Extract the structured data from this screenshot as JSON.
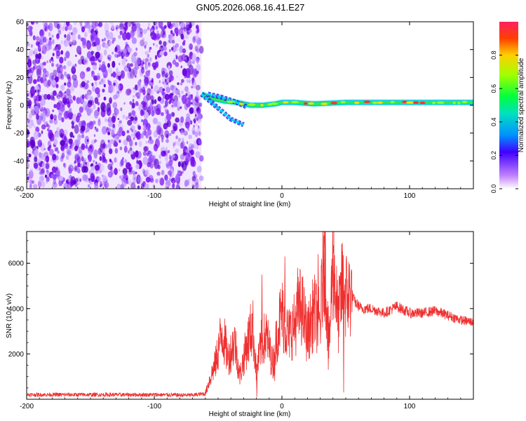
{
  "title": "GN05.2026.068.16.41.E27",
  "chart_data": [
    {
      "type": "heatmap",
      "id": "spectrogram",
      "xlabel": "Height of straight line (km)",
      "ylabel": "Frequency (Hz)",
      "xlim": [
        -200,
        150
      ],
      "ylim": [
        -60,
        60
      ],
      "xticks": [
        -200,
        -100,
        0,
        100
      ],
      "yticks": [
        -60,
        -40,
        -20,
        0,
        20,
        40,
        60
      ],
      "noise_region_x": [
        -200,
        -63
      ],
      "ridge": [
        {
          "x": -63,
          "y": 8
        },
        {
          "x": -55,
          "y": 5
        },
        {
          "x": -45,
          "y": 3
        },
        {
          "x": -35,
          "y": 2
        },
        {
          "x": -25,
          "y": 0
        },
        {
          "x": -15,
          "y": 0
        },
        {
          "x": -5,
          "y": 1
        },
        {
          "x": 0,
          "y": 2
        },
        {
          "x": 10,
          "y": 2
        },
        {
          "x": 25,
          "y": 1
        },
        {
          "x": 50,
          "y": 2
        },
        {
          "x": 100,
          "y": 2
        },
        {
          "x": 150,
          "y": 2
        }
      ],
      "branches": [
        [
          {
            "x": -63,
            "y": 8
          },
          {
            "x": -50,
            "y": -2
          },
          {
            "x": -40,
            "y": -10
          },
          {
            "x": -30,
            "y": -14
          }
        ],
        [
          {
            "x": -58,
            "y": 8
          },
          {
            "x": -48,
            "y": 6
          },
          {
            "x": -38,
            "y": 3
          },
          {
            "x": -28,
            "y": -1
          }
        ]
      ],
      "colorbar": {
        "label": "Normalized spectral amplitude",
        "range": [
          0,
          1
        ],
        "ticks": [
          "0.0",
          "0.2",
          "0.4",
          "0.6",
          "0.8"
        ],
        "tick_values": [
          0.0,
          0.2,
          0.4,
          0.6,
          0.8
        ]
      }
    },
    {
      "type": "line",
      "id": "snr",
      "xlabel": "Height of straight line (km)",
      "ylabel": "SNR (10 * v/v)",
      "xlim": [
        -200,
        150
      ],
      "ylim": [
        0,
        7400
      ],
      "xticks": [
        -200,
        -100,
        0,
        100
      ],
      "yticks": [
        2000,
        4000,
        6000
      ],
      "series": [
        {
          "name": "SNR",
          "color": "#f03030",
          "x": [
            -200,
            -150,
            -100,
            -70,
            -60,
            -57,
            -52,
            -47,
            -42,
            -37,
            -33,
            -28,
            -23,
            -20,
            -16,
            -12,
            -7,
            -3,
            0,
            5,
            10,
            15,
            20,
            25,
            30,
            33,
            37,
            40,
            44,
            47,
            50,
            55,
            57,
            62,
            70,
            80,
            90,
            100,
            110,
            120,
            130,
            140,
            150
          ],
          "values": [
            200,
            200,
            200,
            180,
            250,
            800,
            1600,
            3000,
            1800,
            2600,
            1000,
            2300,
            3300,
            1200,
            2500,
            2800,
            1500,
            3200,
            3800,
            2800,
            3300,
            4200,
            2800,
            3900,
            3300,
            6700,
            2200,
            6400,
            3400,
            4900,
            4600,
            4600,
            4300,
            4000,
            4000,
            3800,
            4100,
            3800,
            3800,
            3900,
            3700,
            3500,
            3400
          ],
          "spikes": [
            {
              "x": -16,
              "y": 5500
            },
            {
              "x": 2,
              "y": 6300
            },
            {
              "x": 12,
              "y": 5800
            },
            {
              "x": 28,
              "y": 6400
            },
            {
              "x": 33,
              "y": 7400
            },
            {
              "x": 40,
              "y": 6800
            },
            {
              "x": 47,
              "y": 6900
            },
            {
              "x": 48,
              "y": 300
            },
            {
              "x": 36,
              "y": 1300
            },
            {
              "x": -20,
              "y": 100
            },
            {
              "x": -6,
              "y": 800
            }
          ]
        }
      ]
    }
  ]
}
